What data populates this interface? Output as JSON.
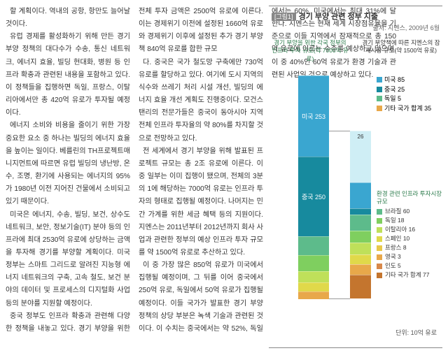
{
  "article": {
    "paragraphs": [
      "할 계획이다. 역내의 공항, 항만도 늘어날 것이다.",
      "유럽 경제를 활성화하기 위해 만든 경기 부양 정책의 대다수가 수송, 통신 네트워크, 에너지 효율, 빌딩 현대화, 병원 등 인프라 확충과 관련된 내용을 포함하고 있다. 이 정책들을 집행하면 독일, 프랑스, 이탈리아에서만 총 420억 유로가 투자될 예정이다.",
      "에너지 소비와 비용을 줄이기 위한 가장 중요한 요소 중 하나는 빌딩의 에너지 효율을 높이는 일이다. 베를린의 TH프로젝트매니지먼트에 따르면 유럽 빌딩의 냉난방, 온수, 조명, 환기에 사용되는 에너지의 95%가 1980년 이전 지어진 건물에서 소비되고 있기 때문이다.",
      "미국은 에너지, 수송, 빌딩, 보건, 상수도 네트워크, 보안, 정보기술(IT) 분야 등의 인프라에 최대 2530억 유로에 상당하는 금액을 투자해 경기를 부양할 계획이다. 미국 정부는 스마트 그리드로 알려진 지능형 에너지 네트워크의 구축, 고속 철도, 보건 분야의 데이터 및 프로세스의 디지털화 사업 등의 분야를 지원할 예정이다.",
      "중국 정부도 인프라 확충과 관련해 다양한 정책을 내놓고 있다. 경기 부양을 위한 전체 투자 금액은 2500억 유로에 이른다. 이는 경제위기 이전에 설정된 1660억 유로와 경제위기 이후에 설정된 추가 경기 부양책 840억 유로를 합한 규모",
      "다. 중국은 국가 철도망 구축에만 730억 유로를 할당하고 있다. 여기에 도시 지역의 식수와 쓰레기 처리 시설 개선, 빌딩의 에너지 효율 개선 계획도 진행중이다. 모건스탠리의 전문가들은 중국이 동아시아 지역 전체 인프라 투자율의 약 80%를 차지할 것으로 전망하고 있다.",
      "전 세계에서 경기 부양을 위해 발표된 프로젝트 규모는 총 2조 유로에 이른다. 이 중 일부는 이미 집행이 됐으며, 전체의 3분의 1에 해당하는 7000억 유로는 인프라 투자의 형태로 집행될 예정이다. 나머지는 민간 가계를 위한 세금 혜택 등의 지원이다. 지멘스는 2011년부터 2012년까지 회사 사업과 관련한 정부의 예상 인프라 투자 규모를 약 1500억 유로로 추산하고 있다.",
      "이 중 가장 많은 850억 유로가 미국에서 집행될 예정이며, 그 뒤를 이어 중국에서 250억 유로, 독일에서 50억 유로가 집행될 예정이다. 이들 국가가 발표한 경기 부양 정책의 상당 부분은 녹색 기술과 관련된 것이다. 이 수치는 중국에서는 약 52%, 독일에서는 60%, 미국에서는 최대 31%에 달한다. 지멘스는 현재 세계 시장점유율을 기준으로 이들 지역에서 잠재적으로 총 150억 유로에 이르는 수주를 예상하고 있으며, 이 중 40%인 60억 유로가 환경 기술과 관련된 사업일 것으로 예상하고 있다."
    ]
  },
  "chart": {
    "tag": "[그림1]",
    "title": "경기 부양 관련 정부 지출",
    "source": "출처: 지멘스, 2009년 6월",
    "note_left": "경기 부양을 위한 각국 정부의 인프라 투자 규모(약 7000억 유로)",
    "note_right": "경기 부양책에 따른 지멘스의 잠재시장 규모(약 1500억 유로)",
    "bar1": [
      {
        "label": "미국 253",
        "value": 253,
        "color": "#3aa6d0"
      },
      {
        "label": "중국 250",
        "value": 250,
        "color": "#178a9e"
      },
      {
        "label": "",
        "value": 60,
        "color": "#5dbb8b"
      },
      {
        "label": "",
        "value": 50,
        "color": "#7fcf5f"
      },
      {
        "label": "",
        "value": 34,
        "color": "#bfe05a"
      },
      {
        "label": "",
        "value": 28,
        "color": "#e0d94a"
      },
      {
        "label": "",
        "value": 25,
        "color": "#e8a84a"
      }
    ],
    "bar2": [
      {
        "label": "",
        "value": 26,
        "color": "#cfeef5"
      },
      {
        "label": "",
        "value": 13,
        "color": "#3aa6d0"
      },
      {
        "label": "",
        "value": 3,
        "color": "#178a9e"
      },
      {
        "label": "",
        "value": 8,
        "color": "#5dbb8b"
      },
      {
        "label": "",
        "value": 6,
        "color": "#7fcf5f"
      },
      {
        "label": "",
        "value": 6,
        "color": "#bfe05a"
      },
      {
        "label": "",
        "value": 5,
        "color": "#e0d94a"
      },
      {
        "label": "",
        "value": 5,
        "color": "#e8a84a"
      },
      {
        "label": "",
        "value": 12,
        "color": "#c4752e"
      }
    ],
    "bar2_top": "26",
    "mid_labels": [
      {
        "label": "미국 85",
        "color": "#3aa6d0"
      },
      {
        "label": "중국 25",
        "color": "#178a9e"
      },
      {
        "label": "독일 5",
        "color": "#5dbb8b"
      },
      {
        "label": "기타 국가 합계 35",
        "color": "#e8a84a"
      }
    ],
    "legend_title": "환경 관련 인프라 투자시장 규모",
    "legend": [
      {
        "label": "브라질 60",
        "color": "#5dbb8b"
      },
      {
        "label": "독일 18",
        "color": "#7fcf5f"
      },
      {
        "label": "이탈리아 16",
        "color": "#bfe05a"
      },
      {
        "label": "스페인 10",
        "color": "#e0d94a"
      },
      {
        "label": "프랑스 8",
        "color": "#e8c84a"
      },
      {
        "label": "영국 3",
        "color": "#e8a84a"
      },
      {
        "label": "인도 5",
        "color": "#d8884a"
      },
      {
        "label": "기타 국가 합계 77",
        "color": "#c4752e"
      }
    ],
    "unit": "단위: 10억 유로"
  }
}
